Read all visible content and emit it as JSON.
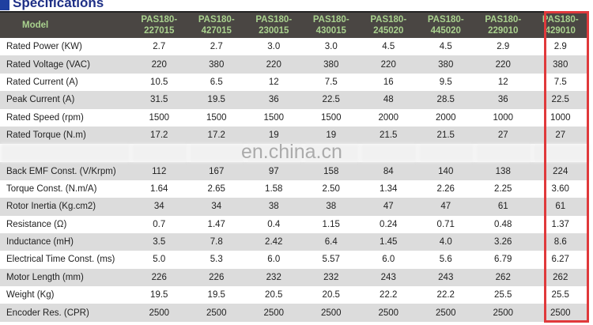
{
  "title": "Specifications",
  "watermark": "en.china.cn",
  "colors": {
    "header_bg": "#4a4643",
    "header_text": "#a9d18e",
    "title": "#1e2f86",
    "highlight_border": "#e0393b",
    "stripe": "#dcdcdc"
  },
  "highlighted_model": "PAS180-429010",
  "table": {
    "header_label": "Model",
    "models": [
      [
        "PAS180-",
        "227015"
      ],
      [
        "PAS180-",
        "427015"
      ],
      [
        "PAS180-",
        "230015"
      ],
      [
        "PAS180-",
        "430015"
      ],
      [
        "PAS180-",
        "245020"
      ],
      [
        "PAS180-",
        "445020"
      ],
      [
        "PAS180-",
        "229010"
      ],
      [
        "PAS180-",
        "429010"
      ]
    ],
    "rows": [
      {
        "label": "Rated Power (KW)",
        "values": [
          "2.7",
          "2.7",
          "3.0",
          "3.0",
          "4.5",
          "4.5",
          "2.9",
          "2.9"
        ]
      },
      {
        "label": "Rated Voltage (VAC)",
        "values": [
          "220",
          "380",
          "220",
          "380",
          "220",
          "380",
          "220",
          "380"
        ]
      },
      {
        "label": "Rated Current (A)",
        "values": [
          "10.5",
          "6.5",
          "12",
          "7.5",
          "16",
          "9.5",
          "12",
          "7.5"
        ]
      },
      {
        "label": "Peak Current (A)",
        "values": [
          "31.5",
          "19.5",
          "36",
          "22.5",
          "48",
          "28.5",
          "36",
          "22.5"
        ]
      },
      {
        "label": "Rated Speed (rpm)",
        "values": [
          "1500",
          "1500",
          "1500",
          "1500",
          "2000",
          "2000",
          "1000",
          "1000"
        ]
      },
      {
        "label": "Rated Torque (N.m)",
        "values": [
          "17.2",
          "17.2",
          "19",
          "19",
          "21.5",
          "21.5",
          "27",
          "27"
        ]
      },
      {
        "label": "Back EMF Const. (V/Krpm)",
        "values": [
          "112",
          "167",
          "97",
          "158",
          "84",
          "140",
          "138",
          "224"
        ]
      },
      {
        "label": "Torque Const. (N.m/A)",
        "values": [
          "1.64",
          "2.65",
          "1.58",
          "2.50",
          "1.34",
          "2.26",
          "2.25",
          "3.60"
        ]
      },
      {
        "label": "Rotor Inertia (Kg.cm2)",
        "values": [
          "34",
          "34",
          "38",
          "38",
          "47",
          "47",
          "61",
          "61"
        ]
      },
      {
        "label": "Resistance (Ω)",
        "values": [
          "0.7",
          "1.47",
          "0.4",
          "1.15",
          "0.24",
          "0.71",
          "0.48",
          "1.37"
        ]
      },
      {
        "label": "Inductance (mH)",
        "values": [
          "3.5",
          "7.8",
          "2.42",
          "6.4",
          "1.45",
          "4.0",
          "3.26",
          "8.6"
        ]
      },
      {
        "label": "Electrical Time Const. (ms)",
        "values": [
          "5.0",
          "5.3",
          "6.0",
          "5.57",
          "6.0",
          "5.6",
          "6.79",
          "6.27"
        ]
      },
      {
        "label": "Motor Length (mm)",
        "values": [
          "226",
          "226",
          "232",
          "232",
          "243",
          "243",
          "262",
          "262"
        ]
      },
      {
        "label": "Weight (Kg)",
        "values": [
          "19.5",
          "19.5",
          "20.5",
          "20.5",
          "22.2",
          "22.2",
          "25.5",
          "25.5"
        ]
      },
      {
        "label": "Encoder Res. (CPR)",
        "values": [
          "2500",
          "2500",
          "2500",
          "2500",
          "2500",
          "2500",
          "2500",
          "2500"
        ]
      }
    ]
  }
}
